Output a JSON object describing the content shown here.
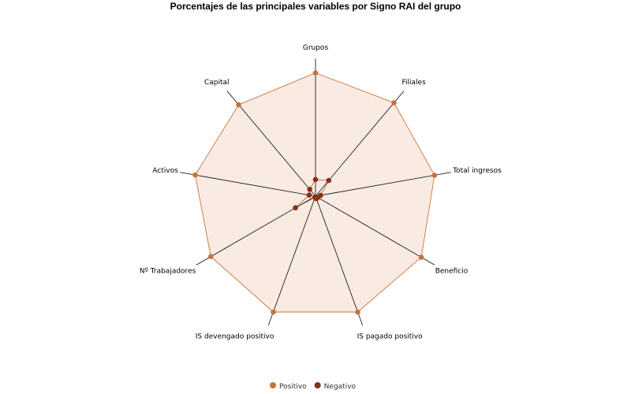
{
  "chart_data": {
    "type": "radar",
    "title": "Porcentajes de las principales variables por Signo RAI del grupo",
    "categories": [
      "Grupos",
      "Filiales",
      "Total ingresos",
      "Beneficio",
      "IS pagado positivo",
      "IS devengado positivo",
      "Nº Trabajadores",
      "Activos",
      "Capital"
    ],
    "rlim": [
      0,
      100
    ],
    "grid": false,
    "legend_position": "bottom",
    "series": [
      {
        "name": "Positivo",
        "color": "#c8743a",
        "fill": "#f9ebe2",
        "values": [
          96,
          95,
          94,
          95,
          96,
          96,
          94,
          95,
          93
        ]
      },
      {
        "name": "Negativo",
        "color": "#8b2e12",
        "values": [
          13,
          16,
          4,
          2,
          2,
          1,
          18,
          5,
          7
        ]
      }
    ]
  }
}
